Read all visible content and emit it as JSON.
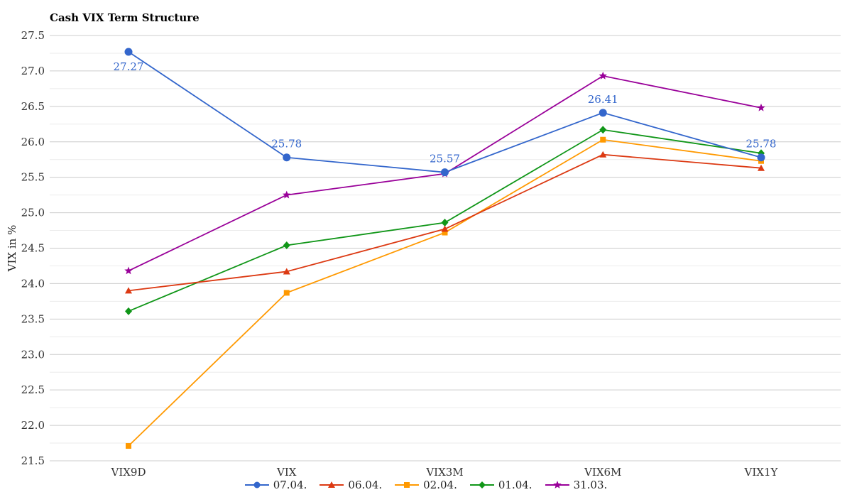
{
  "chart_data": {
    "type": "line",
    "title": "Cash VIX Term Structure",
    "xlabel": "",
    "ylabel": "VIX in %",
    "categories": [
      "VIX9D",
      "VIX",
      "VIX3M",
      "VIX6M",
      "VIX1Y"
    ],
    "ylim": [
      21.5,
      27.5
    ],
    "yticks": [
      "21.5",
      "22.0",
      "22.5",
      "23.0",
      "23.5",
      "24.0",
      "24.5",
      "25.0",
      "25.5",
      "26.0",
      "26.5",
      "27.0",
      "27.5"
    ],
    "grid": true,
    "legend_position": "bottom",
    "series": [
      {
        "name": "07.04.",
        "color": "#3366cc",
        "marker": "circle",
        "values": [
          27.27,
          25.78,
          25.57,
          26.41,
          25.78
        ],
        "labels": [
          "27.27",
          "25.78",
          "25.57",
          "26.41",
          "25.78"
        ]
      },
      {
        "name": "06.04.",
        "color": "#dc3912",
        "marker": "triangle",
        "values": [
          23.9,
          24.17,
          24.77,
          25.82,
          25.63
        ]
      },
      {
        "name": "02.04.",
        "color": "#ff9900",
        "marker": "square",
        "values": [
          21.71,
          23.87,
          24.72,
          26.03,
          25.73
        ]
      },
      {
        "name": "01.04.",
        "color": "#109618",
        "marker": "diamond",
        "values": [
          23.61,
          24.54,
          24.86,
          26.17,
          25.84
        ]
      },
      {
        "name": "31.03.",
        "color": "#990099",
        "marker": "star",
        "values": [
          24.18,
          25.25,
          25.55,
          26.93,
          26.48
        ]
      }
    ]
  }
}
